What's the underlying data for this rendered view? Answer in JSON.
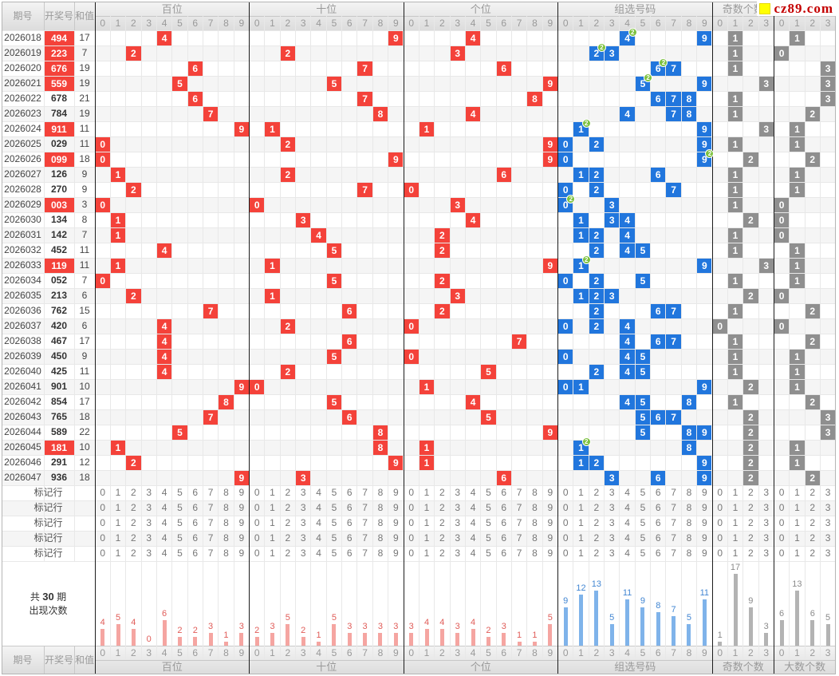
{
  "logo": {
    "text": "cz89.com"
  },
  "stats_label": {
    "prefix": "共",
    "count": "30",
    "suffix": "期",
    "line2": "出现次数"
  },
  "table": {
    "period_label": "期号",
    "number_label": "开奖号",
    "sum_label": "和值",
    "mark_row_label": "标记行",
    "mark_rows_count": 5,
    "sections": [
      {
        "key": "hundreds",
        "label": "百位",
        "cols": [
          "0",
          "1",
          "2",
          "3",
          "4",
          "5",
          "6",
          "7",
          "8",
          "9"
        ]
      },
      {
        "key": "tens",
        "label": "十位",
        "cols": [
          "0",
          "1",
          "2",
          "3",
          "4",
          "5",
          "6",
          "7",
          "8",
          "9"
        ]
      },
      {
        "key": "units",
        "label": "个位",
        "cols": [
          "0",
          "1",
          "2",
          "3",
          "4",
          "5",
          "6",
          "7",
          "8",
          "9"
        ]
      },
      {
        "key": "group",
        "label": "组选号码",
        "cols": [
          "0",
          "1",
          "2",
          "3",
          "4",
          "5",
          "6",
          "7",
          "8",
          "9"
        ]
      },
      {
        "key": "odd",
        "label": "奇数个数",
        "cols": [
          "0",
          "1",
          "2",
          "3"
        ]
      },
      {
        "key": "big",
        "label": "大数个数",
        "cols": [
          "0",
          "1",
          "2",
          "3"
        ]
      }
    ],
    "rows": [
      {
        "period": "2026018",
        "number": "494",
        "sum": 17,
        "special": true,
        "hundreds": 4,
        "tens": 9,
        "units": 4,
        "group": [
          [
            4,
            2
          ],
          [
            9,
            1
          ]
        ],
        "odd": 1,
        "big": 1
      },
      {
        "period": "2026019",
        "number": "223",
        "sum": 7,
        "special": true,
        "hundreds": 2,
        "tens": 2,
        "units": 3,
        "group": [
          [
            2,
            2
          ],
          [
            3,
            1
          ]
        ],
        "odd": 1,
        "big": 0
      },
      {
        "period": "2026020",
        "number": "676",
        "sum": 19,
        "special": true,
        "hundreds": 6,
        "tens": 7,
        "units": 6,
        "group": [
          [
            6,
            2
          ],
          [
            7,
            1
          ]
        ],
        "odd": 1,
        "big": 3
      },
      {
        "period": "2026021",
        "number": "559",
        "sum": 19,
        "special": true,
        "hundreds": 5,
        "tens": 5,
        "units": 9,
        "group": [
          [
            5,
            2
          ],
          [
            9,
            1
          ]
        ],
        "odd": 3,
        "big": 3
      },
      {
        "period": "2026022",
        "number": "678",
        "sum": 21,
        "special": false,
        "hundreds": 6,
        "tens": 7,
        "units": 8,
        "group": [
          [
            6,
            1
          ],
          [
            7,
            1
          ],
          [
            8,
            1
          ]
        ],
        "odd": 1,
        "big": 3
      },
      {
        "period": "2026023",
        "number": "784",
        "sum": 19,
        "special": false,
        "hundreds": 7,
        "tens": 8,
        "units": 4,
        "group": [
          [
            4,
            1
          ],
          [
            7,
            1
          ],
          [
            8,
            1
          ]
        ],
        "odd": 1,
        "big": 2
      },
      {
        "period": "2026024",
        "number": "911",
        "sum": 11,
        "special": true,
        "hundreds": 9,
        "tens": 1,
        "units": 1,
        "group": [
          [
            1,
            2
          ],
          [
            9,
            1
          ]
        ],
        "odd": 3,
        "big": 1
      },
      {
        "period": "2026025",
        "number": "029",
        "sum": 11,
        "special": false,
        "hundreds": 0,
        "tens": 2,
        "units": 9,
        "group": [
          [
            0,
            1
          ],
          [
            2,
            1
          ],
          [
            9,
            1
          ]
        ],
        "odd": 1,
        "big": 1
      },
      {
        "period": "2026026",
        "number": "099",
        "sum": 18,
        "special": true,
        "hundreds": 0,
        "tens": 9,
        "units": 9,
        "group": [
          [
            0,
            1
          ],
          [
            9,
            2
          ]
        ],
        "odd": 2,
        "big": 2
      },
      {
        "period": "2026027",
        "number": "126",
        "sum": 9,
        "special": false,
        "hundreds": 1,
        "tens": 2,
        "units": 6,
        "group": [
          [
            1,
            1
          ],
          [
            2,
            1
          ],
          [
            6,
            1
          ]
        ],
        "odd": 1,
        "big": 1
      },
      {
        "period": "2026028",
        "number": "270",
        "sum": 9,
        "special": false,
        "hundreds": 2,
        "tens": 7,
        "units": 0,
        "group": [
          [
            0,
            1
          ],
          [
            2,
            1
          ],
          [
            7,
            1
          ]
        ],
        "odd": 1,
        "big": 1
      },
      {
        "period": "2026029",
        "number": "003",
        "sum": 3,
        "special": true,
        "hundreds": 0,
        "tens": 0,
        "units": 3,
        "group": [
          [
            0,
            2
          ],
          [
            3,
            1
          ]
        ],
        "odd": 1,
        "big": 0
      },
      {
        "period": "2026030",
        "number": "134",
        "sum": 8,
        "special": false,
        "hundreds": 1,
        "tens": 3,
        "units": 4,
        "group": [
          [
            1,
            1
          ],
          [
            3,
            1
          ],
          [
            4,
            1
          ]
        ],
        "odd": 2,
        "big": 0
      },
      {
        "period": "2026031",
        "number": "142",
        "sum": 7,
        "special": false,
        "hundreds": 1,
        "tens": 4,
        "units": 2,
        "group": [
          [
            1,
            1
          ],
          [
            2,
            1
          ],
          [
            4,
            1
          ]
        ],
        "odd": 1,
        "big": 0
      },
      {
        "period": "2026032",
        "number": "452",
        "sum": 11,
        "special": false,
        "hundreds": 4,
        "tens": 5,
        "units": 2,
        "group": [
          [
            2,
            1
          ],
          [
            4,
            1
          ],
          [
            5,
            1
          ]
        ],
        "odd": 1,
        "big": 1
      },
      {
        "period": "2026033",
        "number": "119",
        "sum": 11,
        "special": true,
        "hundreds": 1,
        "tens": 1,
        "units": 9,
        "group": [
          [
            1,
            2
          ],
          [
            9,
            1
          ]
        ],
        "odd": 3,
        "big": 1
      },
      {
        "period": "2026034",
        "number": "052",
        "sum": 7,
        "special": false,
        "hundreds": 0,
        "tens": 5,
        "units": 2,
        "group": [
          [
            0,
            1
          ],
          [
            2,
            1
          ],
          [
            5,
            1
          ]
        ],
        "odd": 1,
        "big": 1
      },
      {
        "period": "2026035",
        "number": "213",
        "sum": 6,
        "special": false,
        "hundreds": 2,
        "tens": 1,
        "units": 3,
        "group": [
          [
            1,
            1
          ],
          [
            2,
            1
          ],
          [
            3,
            1
          ]
        ],
        "odd": 2,
        "big": 0
      },
      {
        "period": "2026036",
        "number": "762",
        "sum": 15,
        "special": false,
        "hundreds": 7,
        "tens": 6,
        "units": 2,
        "group": [
          [
            2,
            1
          ],
          [
            6,
            1
          ],
          [
            7,
            1
          ]
        ],
        "odd": 1,
        "big": 2
      },
      {
        "period": "2026037",
        "number": "420",
        "sum": 6,
        "special": false,
        "hundreds": 4,
        "tens": 2,
        "units": 0,
        "group": [
          [
            0,
            1
          ],
          [
            2,
            1
          ],
          [
            4,
            1
          ]
        ],
        "odd": 0,
        "big": 0
      },
      {
        "period": "2026038",
        "number": "467",
        "sum": 17,
        "special": false,
        "hundreds": 4,
        "tens": 6,
        "units": 7,
        "group": [
          [
            4,
            1
          ],
          [
            6,
            1
          ],
          [
            7,
            1
          ]
        ],
        "odd": 1,
        "big": 2
      },
      {
        "period": "2026039",
        "number": "450",
        "sum": 9,
        "special": false,
        "hundreds": 4,
        "tens": 5,
        "units": 0,
        "group": [
          [
            0,
            1
          ],
          [
            4,
            1
          ],
          [
            5,
            1
          ]
        ],
        "odd": 1,
        "big": 1
      },
      {
        "period": "2026040",
        "number": "425",
        "sum": 11,
        "special": false,
        "hundreds": 4,
        "tens": 2,
        "units": 5,
        "group": [
          [
            2,
            1
          ],
          [
            4,
            1
          ],
          [
            5,
            1
          ]
        ],
        "odd": 1,
        "big": 1
      },
      {
        "period": "2026041",
        "number": "901",
        "sum": 10,
        "special": false,
        "hundreds": 9,
        "tens": 0,
        "units": 1,
        "group": [
          [
            0,
            1
          ],
          [
            1,
            1
          ],
          [
            9,
            1
          ]
        ],
        "odd": 2,
        "big": 1
      },
      {
        "period": "2026042",
        "number": "854",
        "sum": 17,
        "special": false,
        "hundreds": 8,
        "tens": 5,
        "units": 4,
        "group": [
          [
            4,
            1
          ],
          [
            5,
            1
          ],
          [
            8,
            1
          ]
        ],
        "odd": 1,
        "big": 2
      },
      {
        "period": "2026043",
        "number": "765",
        "sum": 18,
        "special": false,
        "hundreds": 7,
        "tens": 6,
        "units": 5,
        "group": [
          [
            5,
            1
          ],
          [
            6,
            1
          ],
          [
            7,
            1
          ]
        ],
        "odd": 2,
        "big": 3
      },
      {
        "period": "2026044",
        "number": "589",
        "sum": 22,
        "special": false,
        "hundreds": 5,
        "tens": 8,
        "units": 9,
        "group": [
          [
            5,
            1
          ],
          [
            8,
            1
          ],
          [
            9,
            1
          ]
        ],
        "odd": 2,
        "big": 3
      },
      {
        "period": "2026045",
        "number": "181",
        "sum": 10,
        "special": true,
        "hundreds": 1,
        "tens": 8,
        "units": 1,
        "group": [
          [
            1,
            2
          ],
          [
            8,
            1
          ]
        ],
        "odd": 2,
        "big": 1
      },
      {
        "period": "2026046",
        "number": "291",
        "sum": 12,
        "special": false,
        "hundreds": 2,
        "tens": 9,
        "units": 1,
        "group": [
          [
            1,
            1
          ],
          [
            2,
            1
          ],
          [
            9,
            1
          ]
        ],
        "odd": 2,
        "big": 1
      },
      {
        "period": "2026047",
        "number": "936",
        "sum": 18,
        "special": false,
        "hundreds": 9,
        "tens": 3,
        "units": 6,
        "group": [
          [
            3,
            1
          ],
          [
            6,
            1
          ],
          [
            9,
            1
          ]
        ],
        "odd": 2,
        "big": 2
      }
    ]
  },
  "chart_data": {
    "type": "bar",
    "title": "共30期出现次数",
    "note": "frequency of each digit over the 30 listed draws",
    "sections": [
      {
        "label": "百位",
        "categories": [
          "0",
          "1",
          "2",
          "3",
          "4",
          "5",
          "6",
          "7",
          "8",
          "9"
        ],
        "values": [
          4,
          5,
          4,
          0,
          6,
          2,
          2,
          3,
          1,
          3
        ],
        "bar_color": "#f5a5a1",
        "label_color": "#e05c58"
      },
      {
        "label": "十位",
        "categories": [
          "0",
          "1",
          "2",
          "3",
          "4",
          "5",
          "6",
          "7",
          "8",
          "9"
        ],
        "values": [
          2,
          3,
          5,
          2,
          1,
          5,
          3,
          3,
          3,
          3
        ],
        "bar_color": "#f5a5a1",
        "label_color": "#e05c58"
      },
      {
        "label": "个位",
        "categories": [
          "0",
          "1",
          "2",
          "3",
          "4",
          "5",
          "6",
          "7",
          "8",
          "9"
        ],
        "values": [
          3,
          4,
          4,
          3,
          4,
          2,
          3,
          1,
          1,
          5
        ],
        "bar_color": "#f5a5a1",
        "label_color": "#e05c58"
      },
      {
        "label": "组选号码",
        "categories": [
          "0",
          "1",
          "2",
          "3",
          "4",
          "5",
          "6",
          "7",
          "8",
          "9"
        ],
        "values": [
          9,
          12,
          13,
          5,
          11,
          9,
          8,
          7,
          5,
          11
        ],
        "bar_color": "#7fb3ea",
        "label_color": "#4286d2"
      },
      {
        "label": "奇数个数",
        "categories": [
          "0",
          "1",
          "2",
          "3"
        ],
        "values": [
          1,
          17,
          9,
          3
        ],
        "bar_color": "#b3b3b3",
        "label_color": "#8a8a8a"
      },
      {
        "label": "大数个数",
        "categories": [
          "0",
          "1",
          "2",
          "3"
        ],
        "values": [
          6,
          13,
          6,
          5
        ],
        "bar_color": "#b3b3b3",
        "label_color": "#8a8a8a"
      }
    ]
  },
  "colors": {
    "hit_red": "#f4423a",
    "hit_blue": "#2176dd",
    "hit_gray": "#8f8f8f",
    "badge_green": "#7cc13e",
    "logo_red": "#c40000",
    "logo_yellow": "#ffff00"
  }
}
